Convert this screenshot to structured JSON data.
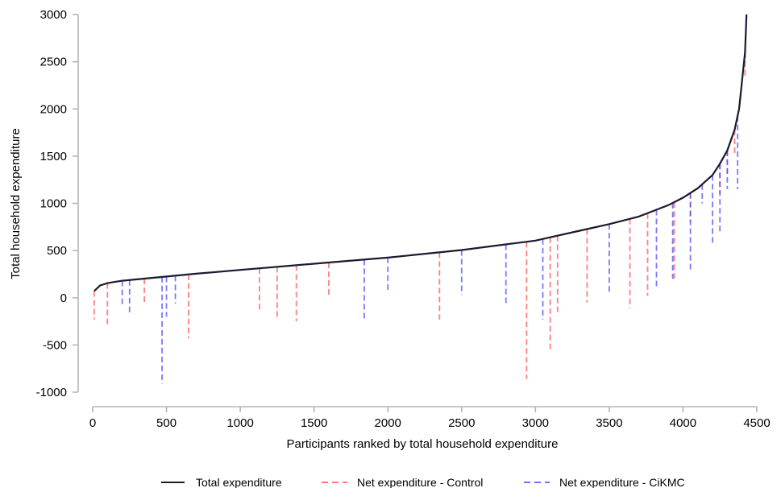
{
  "chart_data": {
    "type": "line",
    "title": "",
    "xlabel": "Participants ranked by total household expenditure",
    "ylabel": "Total household expenditure",
    "xlim": [
      0,
      4500
    ],
    "ylim": [
      -1000,
      3000
    ],
    "xticks": [
      0,
      500,
      1000,
      1500,
      2000,
      2500,
      3000,
      3500,
      4000,
      4500
    ],
    "yticks": [
      -1000,
      -500,
      0,
      500,
      1000,
      1500,
      2000,
      2500,
      3000
    ],
    "grid": false,
    "legend_position": "bottom",
    "series": [
      {
        "name": "Total expenditure",
        "color": "#1a1a2e",
        "style": "solid",
        "x": [
          10,
          50,
          100,
          200,
          300,
          500,
          700,
          1000,
          1500,
          2000,
          2500,
          3000,
          3100,
          3300,
          3500,
          3700,
          3800,
          3900,
          4000,
          4100,
          4200,
          4250,
          4300,
          4350,
          4380,
          4400,
          4420,
          4430
        ],
        "values": [
          70,
          130,
          155,
          180,
          195,
          225,
          255,
          295,
          360,
          425,
          505,
          605,
          640,
          710,
          780,
          860,
          920,
          980,
          1060,
          1160,
          1300,
          1420,
          1560,
          1780,
          2000,
          2300,
          2600,
          3000
        ]
      },
      {
        "name": "Net expenditure - Control",
        "color": "#ff4a4a",
        "style": "dashed",
        "spikes": [
          [
            10,
            -230
          ],
          [
            100,
            -300
          ],
          [
            350,
            -80
          ],
          [
            650,
            -430
          ],
          [
            1130,
            -130
          ],
          [
            1250,
            -210
          ],
          [
            1380,
            -250
          ],
          [
            1600,
            30
          ],
          [
            2350,
            -230
          ],
          [
            2940,
            -860
          ],
          [
            3100,
            -560
          ],
          [
            3150,
            -170
          ],
          [
            3350,
            -50
          ],
          [
            3640,
            -110
          ],
          [
            3760,
            20
          ],
          [
            3940,
            180
          ],
          [
            4050,
            800
          ],
          [
            4250,
            1100
          ],
          [
            4300,
            1300
          ],
          [
            4350,
            1500
          ],
          [
            4420,
            2350
          ]
        ]
      },
      {
        "name": "Net expenditure - CiKMC",
        "color": "#4040ff",
        "style": "dashed",
        "spikes": [
          [
            200,
            -100
          ],
          [
            250,
            -160
          ],
          [
            470,
            -910
          ],
          [
            500,
            -200
          ],
          [
            560,
            -60
          ],
          [
            1840,
            -250
          ],
          [
            2000,
            80
          ],
          [
            2500,
            30
          ],
          [
            2800,
            -60
          ],
          [
            3050,
            -230
          ],
          [
            3500,
            50
          ],
          [
            3820,
            120
          ],
          [
            3930,
            200
          ],
          [
            4050,
            300
          ],
          [
            4130,
            1000
          ],
          [
            4200,
            550
          ],
          [
            4250,
            700
          ],
          [
            4300,
            1150
          ],
          [
            4370,
            1150
          ],
          [
            4420,
            2500
          ]
        ]
      }
    ]
  }
}
